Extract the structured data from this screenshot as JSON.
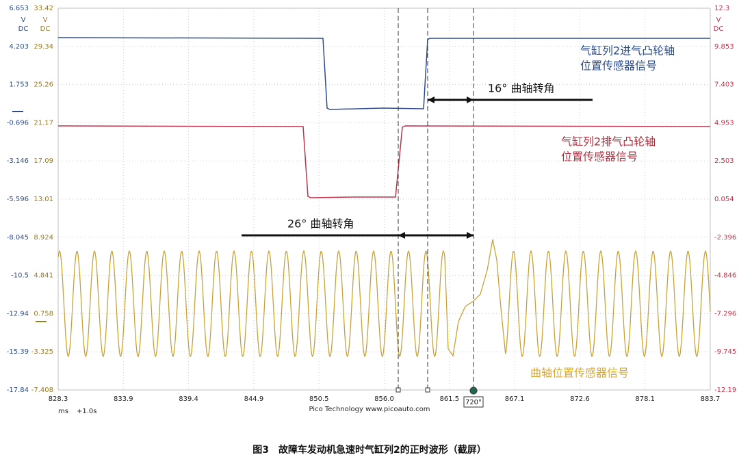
{
  "axes": {
    "left_blue": {
      "unit": [
        "V",
        "DC"
      ],
      "ticks": [
        "6.653",
        "4.203",
        "1.753",
        "-0.696",
        "-3.146",
        "-5.596",
        "-8.045",
        "-10.5",
        "-12.94",
        "-15.39",
        "-17.84"
      ]
    },
    "left_yellow": {
      "unit": [
        "V",
        "DC"
      ],
      "ticks": [
        "33.42",
        "29.34",
        "25.26",
        "21.17",
        "17.09",
        "13.01",
        "8.924",
        "4.841",
        "0.758",
        "-3.325",
        "-7.408"
      ]
    },
    "right_red": {
      "unit": [
        "V",
        "DC"
      ],
      "ticks": [
        "12.3",
        "9.853",
        "7.403",
        "4.953",
        "2.503",
        "0.054",
        "-2.396",
        "-4.846",
        "-7.296",
        "-9.745",
        "-12.19"
      ]
    },
    "x": {
      "ticks": [
        "828.3",
        "833.9",
        "839.4",
        "844.9",
        "850.5",
        "856.0",
        "861.5",
        "867.1",
        "872.6",
        "878.1",
        "883.7"
      ],
      "unit": "ms",
      "offset": "+1.0s"
    }
  },
  "annotations": {
    "intake": [
      "气缸列2进气凸轮轴",
      "位置传感器信号"
    ],
    "exhaust": [
      "气缸列2排气凸轮轴",
      "位置传感器信号"
    ],
    "crank": "曲轴位置传感器信号",
    "angle_16": "16°  曲轴转角",
    "angle_26": "26°  曲轴转角",
    "marker": "720°"
  },
  "footer": "Pico Technology   www.picoauto.com",
  "caption": "图3　故障车发动机急速时气缸列2的正时波形（截屏）"
}
